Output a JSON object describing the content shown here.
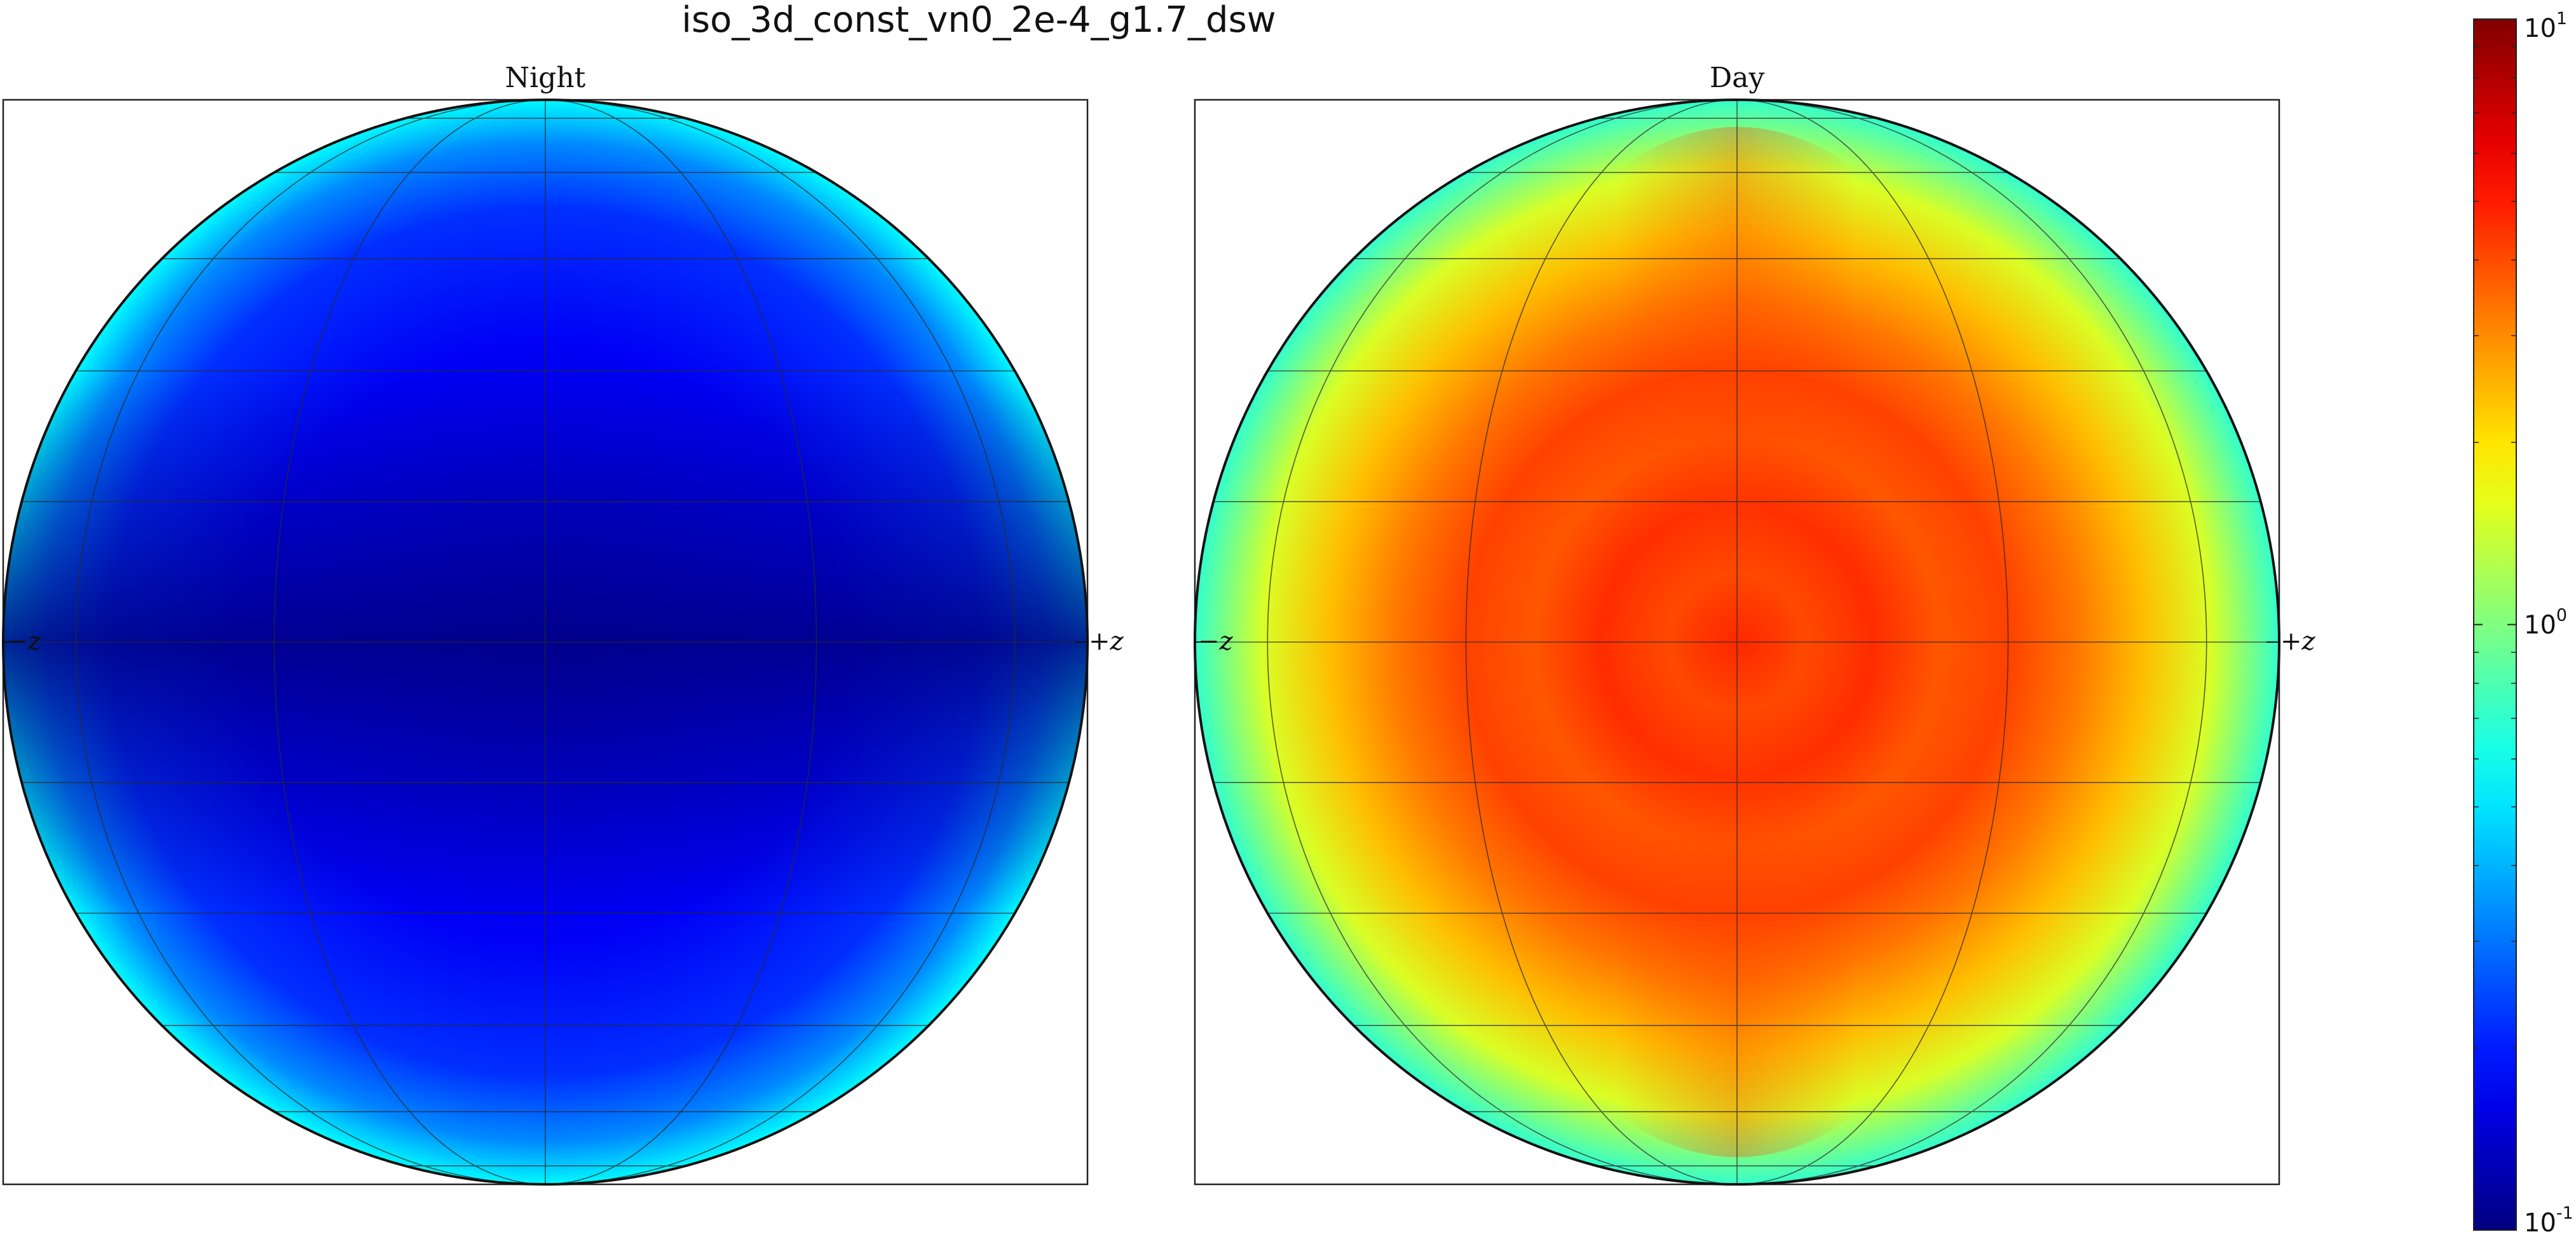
{
  "chart_data": {
    "type": "heatmap",
    "title": "iso_3d_const_vn0_2e-4_g1.7_dsw",
    "projection": "orthographic-globe",
    "graticule": true,
    "colormap": "jet",
    "color_scale": "log",
    "colorbar": {
      "placement": "right",
      "range": [
        0.1,
        10
      ],
      "ticks": [
        {
          "value": 0.1,
          "base": "10",
          "exp": "-1"
        },
        {
          "value": 1,
          "base": "10",
          "exp": "0"
        },
        {
          "value": 10,
          "base": "10",
          "exp": "1"
        }
      ]
    },
    "panels": [
      {
        "name": "Night",
        "title": "Night",
        "left_label": "−z",
        "right_label": "+z",
        "center_value": 0.12,
        "limb_value": 0.55,
        "equator_min_value": 0.1,
        "pattern": "dark-equatorial-band"
      },
      {
        "name": "Day",
        "title": "Day",
        "left_label": "−z",
        "right_label": "+z",
        "center_value": 5.0,
        "limb_value": 0.55,
        "ring_values": [
          5.0,
          4.0,
          4.6,
          3.8,
          4.2,
          3.3,
          2.4,
          1.5,
          0.7
        ],
        "pattern": "concentric-rings"
      }
    ]
  }
}
